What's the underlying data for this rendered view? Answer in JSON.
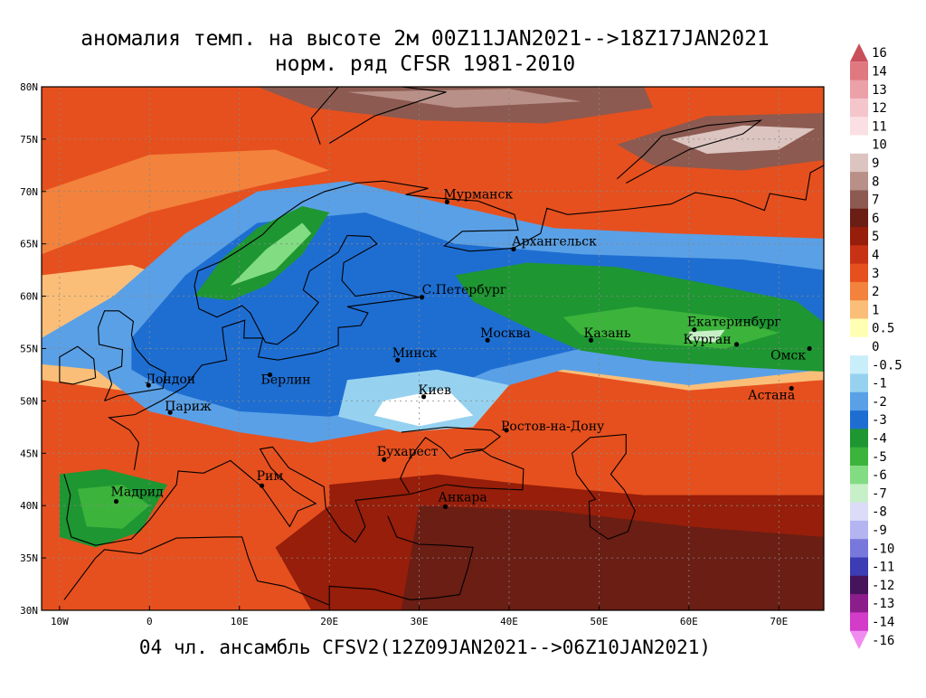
{
  "title": {
    "line1": "аномалия темп. на высоте 2м 00Z11JAN2021-->18Z17JAN2021",
    "line2": "норм. ряд CFSR 1981-2010"
  },
  "footer": "04 чл. ансамбль CFSV2(12Z09JAN2021-->06Z10JAN2021)",
  "axes": {
    "lat_labels": [
      "80N",
      "75N",
      "70N",
      "65N",
      "60N",
      "55N",
      "50N",
      "45N",
      "40N",
      "35N",
      "30N"
    ],
    "lat_values": [
      80,
      75,
      70,
      65,
      60,
      55,
      50,
      45,
      40,
      35,
      30
    ],
    "lon_labels": [
      "10W",
      "0",
      "10E",
      "20E",
      "30E",
      "40E",
      "50E",
      "60E",
      "70E"
    ],
    "lon_values": [
      -10,
      0,
      10,
      20,
      30,
      40,
      50,
      60,
      70
    ],
    "lon_range": [
      -12,
      75
    ],
    "lat_range": [
      30,
      80
    ]
  },
  "cities": [
    {
      "name": "Мурманск",
      "lon": 33.1,
      "lat": 69.0
    },
    {
      "name": "Архангельск",
      "lon": 40.5,
      "lat": 64.5
    },
    {
      "name": "С.Петербург",
      "lon": 30.3,
      "lat": 59.9
    },
    {
      "name": "Москва",
      "lon": 37.6,
      "lat": 55.8
    },
    {
      "name": "Казань",
      "lon": 49.1,
      "lat": 55.8
    },
    {
      "name": "Екатеринбург",
      "lon": 60.6,
      "lat": 56.8
    },
    {
      "name": "Курган",
      "lon": 65.3,
      "lat": 55.4
    },
    {
      "name": "Омск",
      "lon": 73.4,
      "lat": 55.0
    },
    {
      "name": "Астана",
      "lon": 71.4,
      "lat": 51.2
    },
    {
      "name": "Минск",
      "lon": 27.6,
      "lat": 53.9
    },
    {
      "name": "Киев",
      "lon": 30.5,
      "lat": 50.4
    },
    {
      "name": "Берлин",
      "lon": 13.4,
      "lat": 52.5
    },
    {
      "name": "Лондон",
      "lon": -0.1,
      "lat": 51.5
    },
    {
      "name": "Париж",
      "lon": 2.3,
      "lat": 48.9
    },
    {
      "name": "Ростов-на-Дону",
      "lon": 39.7,
      "lat": 47.2
    },
    {
      "name": "Бухарест",
      "lon": 26.1,
      "lat": 44.4
    },
    {
      "name": "Рим",
      "lon": 12.5,
      "lat": 41.9
    },
    {
      "name": "Мадрид",
      "lon": -3.7,
      "lat": 40.4
    },
    {
      "name": "Анкара",
      "lon": 32.9,
      "lat": 39.9
    }
  ],
  "legend": {
    "labels": [
      "16",
      "14",
      "13",
      "12",
      "11",
      "10",
      "9",
      "8",
      "7",
      "6",
      "5",
      "4",
      "3",
      "2",
      "1",
      "0.5",
      "0",
      "-0.5",
      "-1",
      "-2",
      "-3",
      "-4",
      "-5",
      "-6",
      "-7",
      "-8",
      "-9",
      "-10",
      "-11",
      "-12",
      "-13",
      "-14",
      "-16"
    ],
    "colors": [
      "#c8505a",
      "#e07880",
      "#eca0a8",
      "#f4c6cc",
      "#fae0e4",
      "#ffffff",
      "#dcc4c0",
      "#b89088",
      "#8c5a50",
      "#6a1e14",
      "#961e0a",
      "#c83214",
      "#e6501e",
      "#f2823c",
      "#fabe78",
      "#ffffb4",
      "#ffffff",
      "#c8eefa",
      "#96d2f0",
      "#5aa0e6",
      "#1e6ed2",
      "#1e9632",
      "#3cb43c",
      "#82dc82",
      "#c8f0c8",
      "#dcdcf8",
      "#b4b4f0",
      "#7878dc",
      "#3c3cb4",
      "#46145a",
      "#8c1e8c",
      "#d23cc8",
      "#f08cf0"
    ]
  },
  "zones": {
    "arctic_warm": 8,
    "north_sea": 3,
    "scandinavia": -3.5,
    "baltic": -2,
    "russia_belt": -4,
    "ukraine": -1,
    "south": 4,
    "turkey_iran": 6,
    "iberia": -3.5
  },
  "colors": {
    "coast": "#000000",
    "grid": "#888888",
    "background": "#ffffff"
  }
}
